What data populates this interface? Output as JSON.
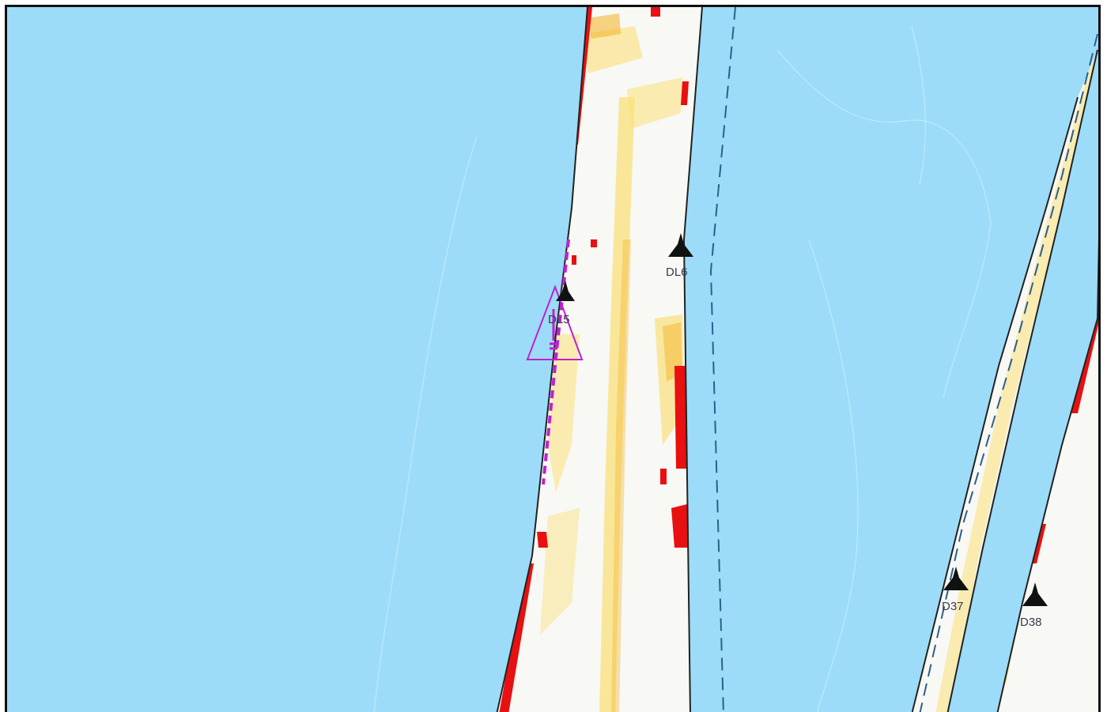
{
  "map": {
    "colors": {
      "water": "#9cdcf8",
      "land": "#f8f8f4",
      "shore_edge": "#222222",
      "hotspot_high": "#e81010",
      "hotspot_mid": "#f2b020",
      "hotspot_low": "#fbe07a",
      "channel_line": "#2a6090",
      "selection": "#c020d0"
    },
    "markers": [
      {
        "id": "dl5",
        "label": "DL5",
        "icon": "beacon-icon",
        "occluded": true
      },
      {
        "id": "dl6",
        "label": "DL6",
        "icon": "beacon-icon"
      },
      {
        "id": "d37",
        "label": "D37",
        "icon": "beacon-icon"
      },
      {
        "id": "d38",
        "label": "D38",
        "icon": "beacon-icon"
      }
    ],
    "selected_feature": {
      "icon": "warning-triangle-icon",
      "linked_marker": "DL5"
    }
  }
}
